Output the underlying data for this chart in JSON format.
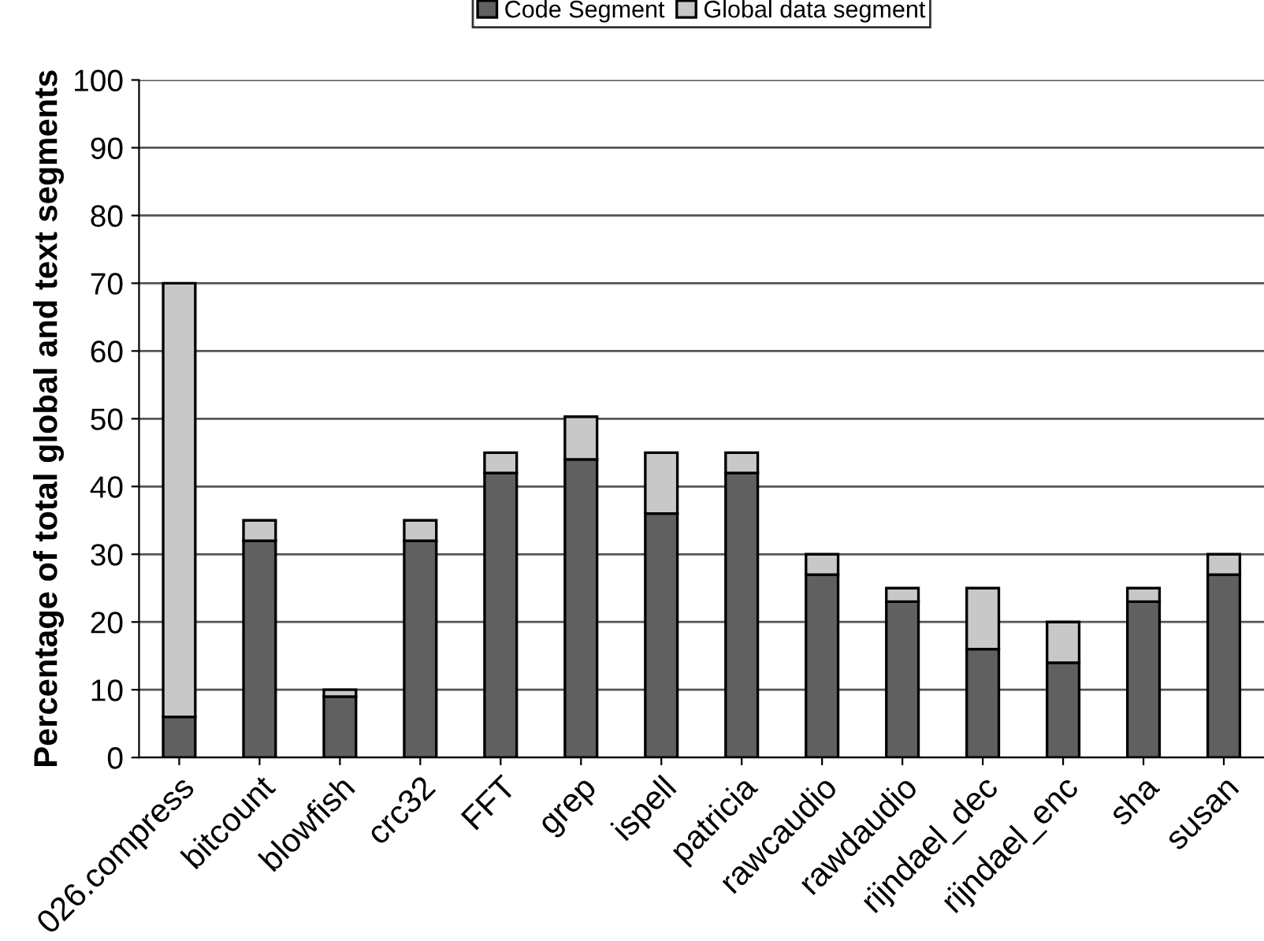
{
  "chart_data": {
    "type": "bar",
    "stacked": true,
    "ylabel": "Percentage of total global and text segments",
    "categories": [
      "026.compress",
      "bitcount",
      "blowfish",
      "crc32",
      "FFT",
      "grep",
      "ispell",
      "patricia",
      "rawcaudio",
      "rawdaudio",
      "rijndael_dec",
      "rijndael_enc",
      "sha",
      "susan"
    ],
    "series": [
      {
        "name": "Code Segment",
        "color": "#606060",
        "values": [
          6,
          32,
          9,
          32,
          42,
          44,
          36,
          42,
          27,
          23,
          16,
          14,
          23,
          27
        ]
      },
      {
        "name": "Global data segment",
        "color": "#c8c8c8",
        "values": [
          64,
          3,
          1,
          3,
          3,
          6.3,
          9,
          3,
          3,
          2,
          9,
          6,
          2,
          3
        ]
      }
    ],
    "ylim": [
      0,
      100
    ],
    "yticks": [
      0,
      10,
      20,
      30,
      40,
      50,
      60,
      70,
      80,
      90,
      100
    ],
    "grid": "y",
    "legend": "top"
  }
}
